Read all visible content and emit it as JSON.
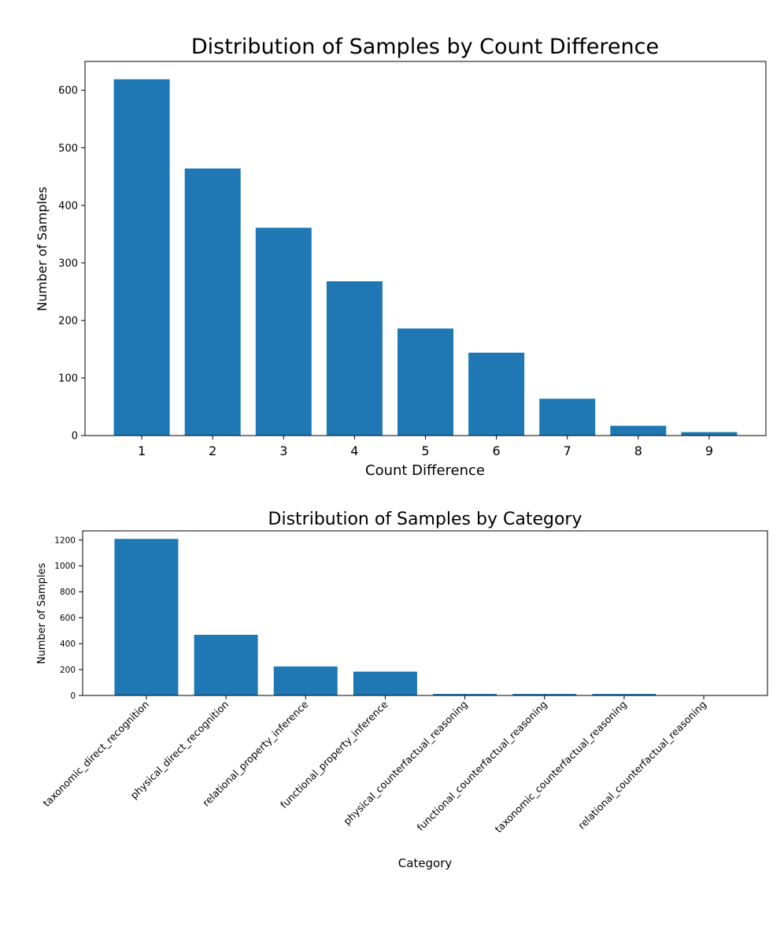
{
  "chart_data": [
    {
      "type": "bar",
      "title": "Distribution of Samples by Count Difference",
      "xlabel": "Count Difference",
      "ylabel": "Number of Samples",
      "categories": [
        "1",
        "2",
        "3",
        "4",
        "5",
        "6",
        "7",
        "8",
        "9"
      ],
      "values": [
        619,
        464,
        361,
        268,
        186,
        144,
        64,
        17,
        6
      ],
      "ylim": [
        0,
        650
      ],
      "yticks": [
        0,
        100,
        200,
        300,
        400,
        500,
        600
      ],
      "grid": false,
      "legend": "none",
      "bar_color": "#1f77b4"
    },
    {
      "type": "bar",
      "title": "Distribution of Samples by Category",
      "xlabel": "Category",
      "ylabel": "Number of Samples",
      "categories": [
        "taxonomic_direct_recognition",
        "physical_direct_recognition",
        "relational_property_inference",
        "functional_property_inference",
        "physical_counterfactual_reasoning",
        "functional_counterfactual_reasoning",
        "taxonomic_counterfactual_reasoning",
        "relational_counterfactual_reasoning"
      ],
      "values": [
        1208,
        468,
        224,
        184,
        12,
        12,
        12,
        1
      ],
      "ylim": [
        0,
        1270
      ],
      "yticks": [
        0,
        200,
        400,
        600,
        800,
        1000,
        1200
      ],
      "grid": false,
      "legend": "none",
      "bar_color": "#1f77b4",
      "tick_label_rotation": -45
    }
  ]
}
